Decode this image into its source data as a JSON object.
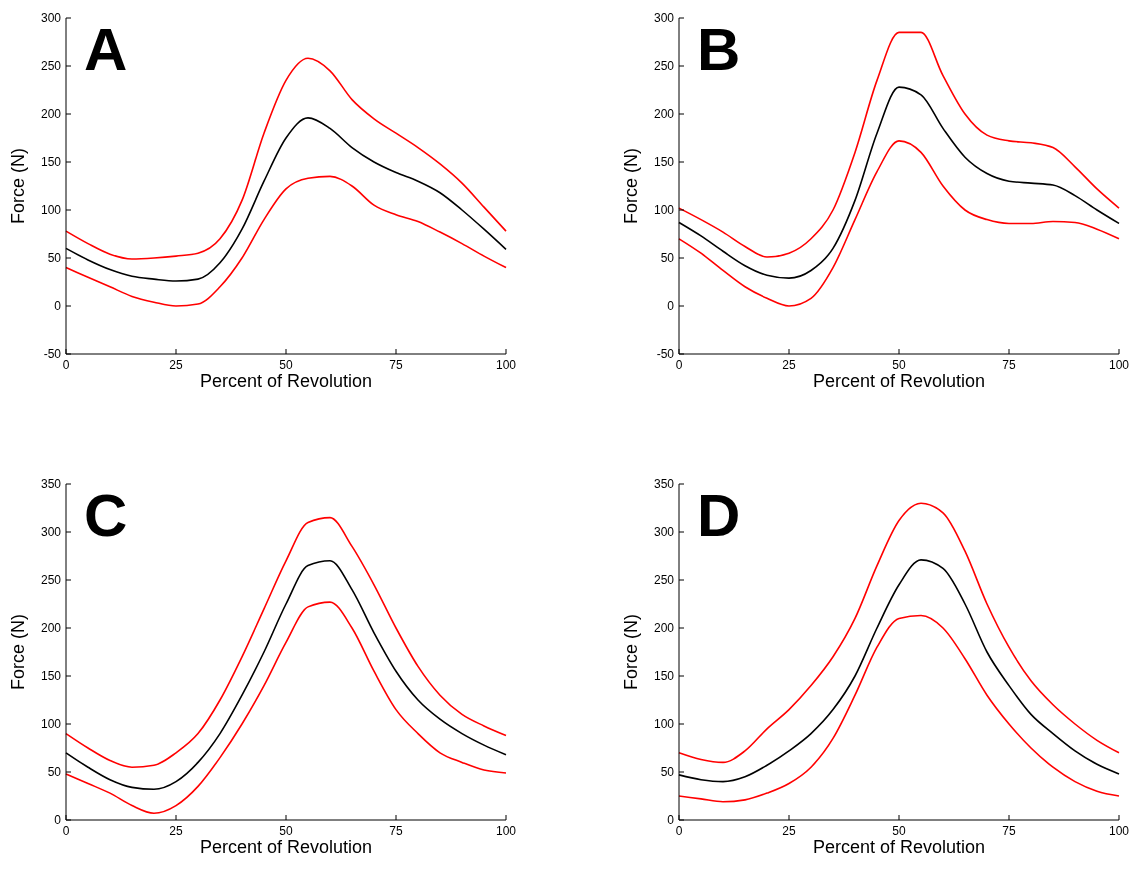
{
  "chart_data": [
    {
      "type": "line",
      "title": "A",
      "xlabel": "Percent of Revolution",
      "ylabel": "Force (N)",
      "x": [
        0,
        5,
        10,
        15,
        20,
        25,
        30,
        35,
        40,
        45,
        50,
        55,
        60,
        65,
        70,
        75,
        80,
        85,
        90,
        95,
        100
      ],
      "xlim": [
        0,
        100
      ],
      "xticks": [
        0,
        25,
        50,
        75,
        100
      ],
      "ylim": [
        -50,
        300
      ],
      "yticks": [
        -50,
        0,
        50,
        100,
        150,
        200,
        250,
        300
      ],
      "series": [
        {
          "color": "#ff0000",
          "values": [
            78,
            65,
            54,
            49,
            50,
            52,
            55,
            70,
            110,
            180,
            235,
            258,
            245,
            215,
            195,
            180,
            165,
            148,
            128,
            103,
            78
          ]
        },
        {
          "color": "#000000",
          "values": [
            60,
            48,
            38,
            31,
            28,
            26,
            28,
            45,
            80,
            130,
            175,
            196,
            185,
            165,
            150,
            139,
            130,
            118,
            100,
            80,
            59
          ]
        },
        {
          "color": "#ff0000",
          "values": [
            40,
            30,
            20,
            10,
            4,
            0,
            2,
            20,
            50,
            90,
            122,
            133,
            135,
            125,
            105,
            95,
            88,
            77,
            65,
            52,
            40
          ]
        }
      ]
    },
    {
      "type": "line",
      "title": "B",
      "xlabel": "Percent of Revolution",
      "ylabel": "Force (N)",
      "x": [
        0,
        5,
        10,
        15,
        20,
        25,
        30,
        35,
        40,
        45,
        50,
        55,
        60,
        65,
        70,
        75,
        80,
        85,
        90,
        95,
        100
      ],
      "xlim": [
        0,
        100
      ],
      "xticks": [
        0,
        25,
        50,
        75,
        100
      ],
      "ylim": [
        -50,
        300
      ],
      "yticks": [
        -50,
        0,
        50,
        100,
        150,
        200,
        250,
        300
      ],
      "series": [
        {
          "color": "#ff0000",
          "values": [
            102,
            90,
            77,
            62,
            51,
            55,
            70,
            100,
            160,
            235,
            285,
            285,
            240,
            200,
            178,
            172,
            170,
            165,
            145,
            122,
            102
          ]
        },
        {
          "color": "#000000",
          "values": [
            87,
            73,
            57,
            42,
            32,
            29,
            37,
            60,
            110,
            180,
            228,
            220,
            185,
            155,
            138,
            130,
            128,
            126,
            115,
            100,
            86
          ]
        },
        {
          "color": "#ff0000",
          "values": [
            70,
            55,
            37,
            20,
            8,
            0,
            8,
            40,
            90,
            140,
            172,
            160,
            125,
            100,
            90,
            86,
            86,
            88,
            87,
            80,
            70
          ]
        }
      ]
    },
    {
      "type": "line",
      "title": "C",
      "xlabel": "Percent of Revolution",
      "ylabel": "Force (N)",
      "x": [
        0,
        5,
        10,
        15,
        20,
        25,
        30,
        35,
        40,
        45,
        50,
        55,
        60,
        65,
        70,
        75,
        80,
        85,
        90,
        95,
        100
      ],
      "xlim": [
        0,
        100
      ],
      "xticks": [
        0,
        25,
        50,
        75,
        100
      ],
      "ylim": [
        0,
        350
      ],
      "yticks": [
        0,
        50,
        100,
        150,
        200,
        250,
        300,
        350
      ],
      "series": [
        {
          "color": "#ff0000",
          "values": [
            90,
            75,
            62,
            55,
            57,
            70,
            90,
            125,
            170,
            220,
            270,
            310,
            315,
            285,
            245,
            200,
            160,
            130,
            110,
            98,
            88
          ]
        },
        {
          "color": "#000000",
          "values": [
            70,
            55,
            42,
            34,
            32,
            40,
            60,
            90,
            130,
            175,
            225,
            265,
            270,
            240,
            195,
            155,
            125,
            105,
            90,
            78,
            68
          ]
        },
        {
          "color": "#ff0000",
          "values": [
            48,
            38,
            28,
            15,
            7,
            15,
            35,
            65,
            100,
            140,
            185,
            222,
            227,
            200,
            155,
            115,
            90,
            70,
            60,
            52,
            49
          ]
        }
      ]
    },
    {
      "type": "line",
      "title": "D",
      "xlabel": "Percent of Revolution",
      "ylabel": "Force (N)",
      "x": [
        0,
        5,
        10,
        15,
        20,
        25,
        30,
        35,
        40,
        45,
        50,
        55,
        60,
        65,
        70,
        75,
        80,
        85,
        90,
        95,
        100
      ],
      "xlim": [
        0,
        100
      ],
      "xticks": [
        0,
        25,
        50,
        75,
        100
      ],
      "ylim": [
        0,
        350
      ],
      "yticks": [
        0,
        50,
        100,
        150,
        200,
        250,
        300,
        350
      ],
      "series": [
        {
          "color": "#ff0000",
          "values": [
            70,
            63,
            60,
            72,
            95,
            115,
            140,
            170,
            210,
            265,
            312,
            330,
            320,
            280,
            225,
            180,
            145,
            120,
            100,
            83,
            70
          ]
        },
        {
          "color": "#000000",
          "values": [
            47,
            42,
            40,
            45,
            57,
            72,
            90,
            115,
            150,
            200,
            245,
            271,
            262,
            225,
            175,
            140,
            110,
            90,
            72,
            58,
            48
          ]
        },
        {
          "color": "#ff0000",
          "values": [
            25,
            22,
            19,
            21,
            28,
            38,
            55,
            85,
            130,
            180,
            210,
            213,
            200,
            168,
            130,
            100,
            75,
            55,
            40,
            30,
            25
          ]
        }
      ]
    }
  ]
}
